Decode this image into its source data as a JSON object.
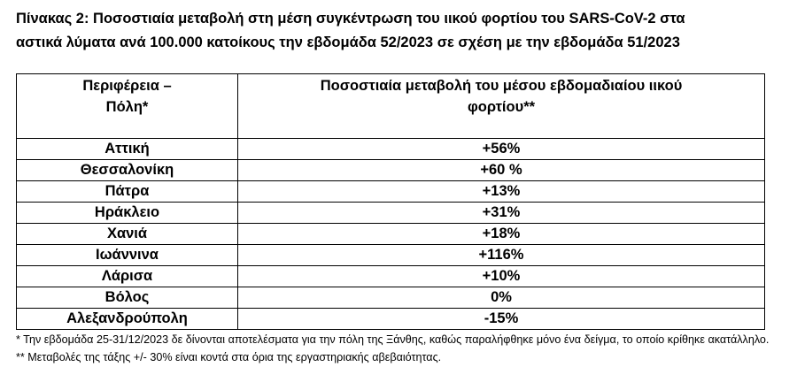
{
  "title": [
    "Πίνακας 2: Ποσοστιαία μεταβολή στη μέση συγκέντρωση του ιικού φορτίου του SARS-CoV-2 στα",
    "αστικά λύματα ανά 100.000 κατοίκους την εβδομάδα 52/2023 σε σχέση με την εβδομάδα 51/2023"
  ],
  "table": {
    "header": [
      "Περιφέρεια –\nΠόλη*",
      "Ποσοστιαία μεταβολή του μέσου εβδομαδιαίου ιικού\nφορτίου**"
    ],
    "rows": [
      [
        "Αττική",
        "+56%"
      ],
      [
        "Θεσσαλονίκη",
        "+60 %"
      ],
      [
        "Πάτρα",
        "+13%"
      ],
      [
        "Ηράκλειο",
        "+31%"
      ],
      [
        "Χανιά",
        "+18%"
      ],
      [
        "Ιωάννινα",
        "+116%"
      ],
      [
        "Λάρισα",
        "+10%"
      ],
      [
        "Βόλος",
        "0%"
      ],
      [
        "Αλεξανδρούπολη",
        "-15%"
      ]
    ]
  },
  "footnotes": [
    "*  Την εβδομάδα 25-31/12/2023 δε δίνονται αποτελέσματα για την πόλη της Ξάνθης, καθώς παραλήφθηκε μόνο ένα δείγμα, το οποίο κρίθηκε ακατάλληλο.",
    "** Μεταβολές της τάξης +/- 30% είναι κοντά στα όρια της εργαστηριακής αβεβαιότητας."
  ]
}
